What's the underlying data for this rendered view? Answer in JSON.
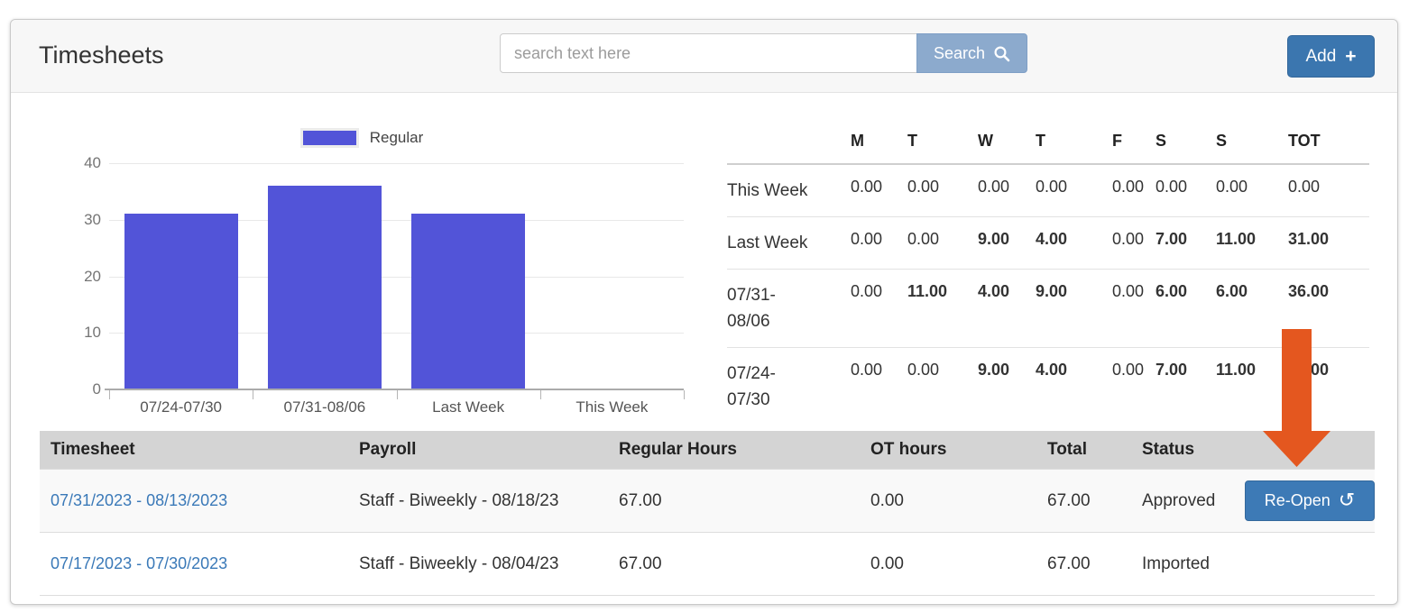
{
  "header": {
    "title": "Timesheets",
    "search": {
      "placeholder": "search text here",
      "button_label": "Search"
    },
    "add_button_label": "Add"
  },
  "chart_data": {
    "type": "bar",
    "title": "",
    "categories": [
      "07/24-07/30",
      "07/31-08/06",
      "Last Week",
      "This Week"
    ],
    "series": [
      {
        "name": "Regular",
        "values": [
          31,
          36,
          31,
          0
        ]
      }
    ],
    "xlabel": "",
    "ylabel": "",
    "ylim": [
      0,
      40
    ],
    "yticks": [
      0,
      10,
      20,
      30,
      40
    ],
    "grid": true,
    "legend_position": "top",
    "bar_color": "#5254d8"
  },
  "week_summary": {
    "day_columns": [
      "M",
      "T",
      "W",
      "T",
      "F",
      "S",
      "S",
      "TOT"
    ],
    "rows": [
      {
        "label": "This Week",
        "values": [
          "0.00",
          "0.00",
          "0.00",
          "0.00",
          "0.00",
          "0.00",
          "0.00",
          "0.00"
        ]
      },
      {
        "label": "Last Week",
        "values": [
          "0.00",
          "0.00",
          "9.00",
          "4.00",
          "0.00",
          "7.00",
          "11.00",
          "31.00"
        ]
      },
      {
        "label": "07/31-08/06",
        "values": [
          "0.00",
          "11.00",
          "4.00",
          "9.00",
          "0.00",
          "6.00",
          "6.00",
          "36.00"
        ]
      },
      {
        "label": "07/24-07/30",
        "values": [
          "0.00",
          "0.00",
          "9.00",
          "4.00",
          "0.00",
          "7.00",
          "11.00",
          "31.00"
        ]
      }
    ]
  },
  "timesheets_table": {
    "columns": [
      "Timesheet",
      "Payroll",
      "Regular Hours",
      "OT hours",
      "Total",
      "Status",
      ""
    ],
    "rows": [
      {
        "timesheet": "07/31/2023 - 08/13/2023",
        "payroll": "Staff - Biweekly - 08/18/23",
        "regular_hours": "67.00",
        "ot_hours": "0.00",
        "total": "67.00",
        "status": "Approved",
        "action_label": "Re-Open"
      },
      {
        "timesheet": "07/17/2023 - 07/30/2023",
        "payroll": "Staff - Biweekly - 08/04/23",
        "regular_hours": "67.00",
        "ot_hours": "0.00",
        "total": "67.00",
        "status": "Imported",
        "action_label": ""
      }
    ]
  },
  "annotation_arrow": {
    "color": "#e4571f"
  },
  "colors": {
    "bar": "#5254d8",
    "search_button_bg": "#8caacd",
    "add_button_bg": "#3b76af",
    "reopen_button_bg": "#3d7ab6",
    "link": "#3a79b8",
    "table_header_bg": "#d4d4d4",
    "card_header_bg": "#f7f7f7",
    "arrow": "#e4571f"
  }
}
